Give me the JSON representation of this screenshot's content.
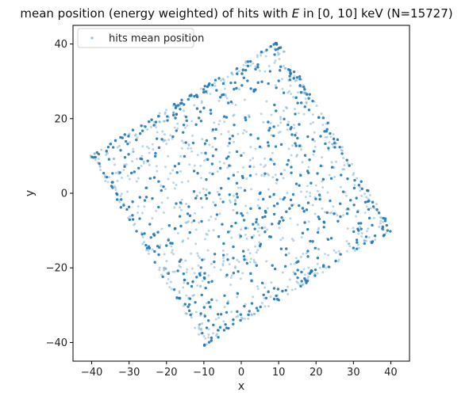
{
  "chart_data": {
    "type": "scatter",
    "title": "mean position (energy weighted) of hits with E in [0, 10] keV (N=15727)",
    "title_parts": {
      "prefix": "mean position (energy weighted) of hits with ",
      "symbol": "E",
      "suffix": " in [0, 10] keV (N=15727)"
    },
    "xlabel": "x",
    "ylabel": "y",
    "xlim": [
      -45,
      45
    ],
    "ylim": [
      -45,
      45
    ],
    "xticks": [
      -40,
      -30,
      -20,
      -10,
      0,
      10,
      20,
      30,
      40
    ],
    "yticks": [
      -40,
      -20,
      0,
      20,
      40
    ],
    "grid": false,
    "legend": {
      "position": "upper-left",
      "entries": [
        "hits mean position"
      ]
    },
    "series": [
      {
        "name": "hits mean position",
        "color": "#1f77b4",
        "region_corners": [
          [
            -40.5,
            10
          ],
          [
            10,
            41
          ],
          [
            40.5,
            -10
          ],
          [
            -10,
            -41
          ]
        ],
        "approx_points_shown": 1400,
        "boundary_concentration": true
      }
    ]
  }
}
